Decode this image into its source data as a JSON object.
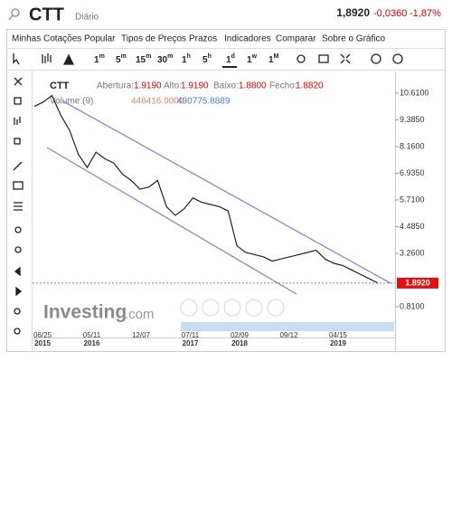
{
  "header": {
    "symbol": "CTT",
    "period": "Diário",
    "price": "1,8920",
    "change": "-0,0360",
    "change_pct": "-1,87%"
  },
  "menu": [
    "Minhas Cotações",
    "Popular",
    "Tipos de Preços",
    "Prazos",
    "Indicadores",
    "Comparar",
    "Sobre o Gráfico"
  ],
  "timeframes": [
    {
      "n": "1",
      "u": "m"
    },
    {
      "n": "5",
      "u": "m"
    },
    {
      "n": "15",
      "u": "m"
    },
    {
      "n": "30",
      "u": "m"
    },
    {
      "n": "1",
      "u": "h"
    },
    {
      "n": "5",
      "u": "h"
    },
    {
      "n": "1",
      "u": "d"
    },
    {
      "n": "1",
      "u": "w"
    },
    {
      "n": "1",
      "u": "M"
    }
  ],
  "legend": {
    "symbol": "CTT",
    "open_label": "Abertura:",
    "open": "1.9190",
    "high_label": "Alto:",
    "high": "1.9190",
    "low_label": "Baixo:",
    "low": "1.8800",
    "close_label": "Fecho:",
    "close": "1.8820",
    "volume_label": "Volume (9)",
    "volume": "446416.0000",
    "volume_avg": "490775.8889"
  },
  "chart": {
    "ylim": [
      0.06,
      11.23
    ],
    "yticks": [
      {
        "value": 10.61,
        "label": "10.6100"
      },
      {
        "value": 9.385,
        "label": "9.3850"
      },
      {
        "value": 8.16,
        "label": "8.1600"
      },
      {
        "value": 6.935,
        "label": "6.9350"
      },
      {
        "value": 5.71,
        "label": "5.7100"
      },
      {
        "value": 4.485,
        "label": "4.4850"
      },
      {
        "value": 3.26,
        "label": "3.2600"
      },
      {
        "value": 0.81,
        "label": "0.8100"
      }
    ],
    "last_price": {
      "value": 1.892,
      "label": "1.8920"
    },
    "values": [
      10.0,
      10.2,
      10.5,
      9.6,
      8.9,
      7.8,
      7.2,
      7.9,
      7.6,
      7.4,
      6.9,
      6.6,
      6.2,
      6.3,
      6.6,
      5.4,
      5.0,
      5.3,
      5.8,
      5.6,
      5.5,
      5.4,
      5.2,
      3.6,
      3.3,
      3.2,
      3.1,
      2.9,
      3.0,
      3.1,
      3.2,
      3.3,
      3.4,
      3.0,
      2.8,
      2.7,
      2.5,
      2.3,
      2.1,
      1.9
    ],
    "xlabels": [
      {
        "date": "06/25",
        "year": "2015"
      },
      {
        "date": "05/11",
        "year": "2016"
      },
      {
        "date": "12/07"
      },
      {
        "date": "07/11",
        "year": "2017"
      },
      {
        "date": "02/09",
        "year": "2018"
      },
      {
        "date": "09/12"
      },
      {
        "date": "04/15",
        "year": "2019"
      }
    ]
  },
  "watermark": {
    "brand": "Investing",
    "domain": ".com"
  }
}
